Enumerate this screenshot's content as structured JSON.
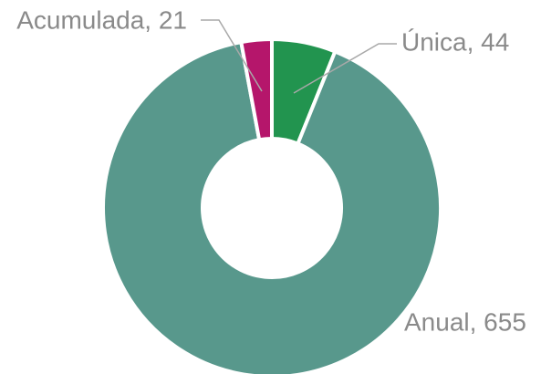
{
  "chart_data": {
    "type": "donut",
    "values": [
      44,
      655,
      21
    ],
    "value_labels": [
      "Única, 44",
      "Anual, 655",
      "Acumulada, 21"
    ],
    "colors": [
      "#22944f",
      "#58988c",
      "#b5166b"
    ]
  }
}
